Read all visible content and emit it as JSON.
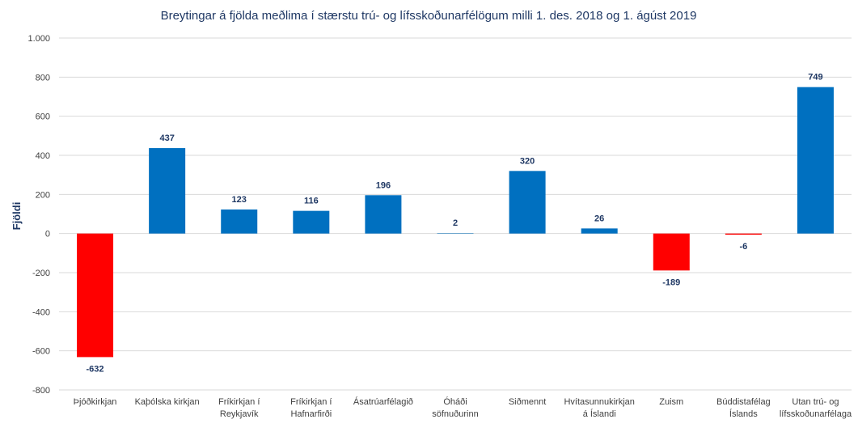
{
  "chart_data": {
    "type": "bar",
    "title": "Breytingar á fjölda meðlima í stærstu trú- og lífsskoðunarfélögum milli 1. des. 2018 og 1. ágúst 2019",
    "xlabel": "",
    "ylabel": "Fjöldi",
    "ylim": [
      -800,
      1000
    ],
    "yticks": [
      -800,
      -600,
      -400,
      -200,
      0,
      200,
      400,
      600,
      800,
      1000
    ],
    "ytick_labels": [
      "-800",
      "-600",
      "-400",
      "-200",
      "0",
      "200",
      "400",
      "600",
      "800",
      "1.000"
    ],
    "grid": true,
    "categories": [
      [
        "Þjóðkirkjan"
      ],
      [
        "Kaþólska kirkjan"
      ],
      [
        "Fríkirkjan í",
        "Reykjavík"
      ],
      [
        "Fríkirkjan í",
        "Hafnarfirði"
      ],
      [
        "Ásatrúarfélagið"
      ],
      [
        "Óháði",
        "söfnuðurinn"
      ],
      [
        "Siðmennt"
      ],
      [
        "Hvítasunnukirkjan",
        "á Íslandi"
      ],
      [
        "Zuism"
      ],
      [
        "Búddistafélag",
        "Íslands"
      ],
      [
        "Utan trú- og",
        "lífsskoðunarfélaga"
      ]
    ],
    "values": [
      -632,
      437,
      123,
      116,
      196,
      2,
      320,
      26,
      -189,
      -6,
      749
    ],
    "colors": {
      "positive": "#0070c0",
      "negative": "#ff0000"
    }
  }
}
